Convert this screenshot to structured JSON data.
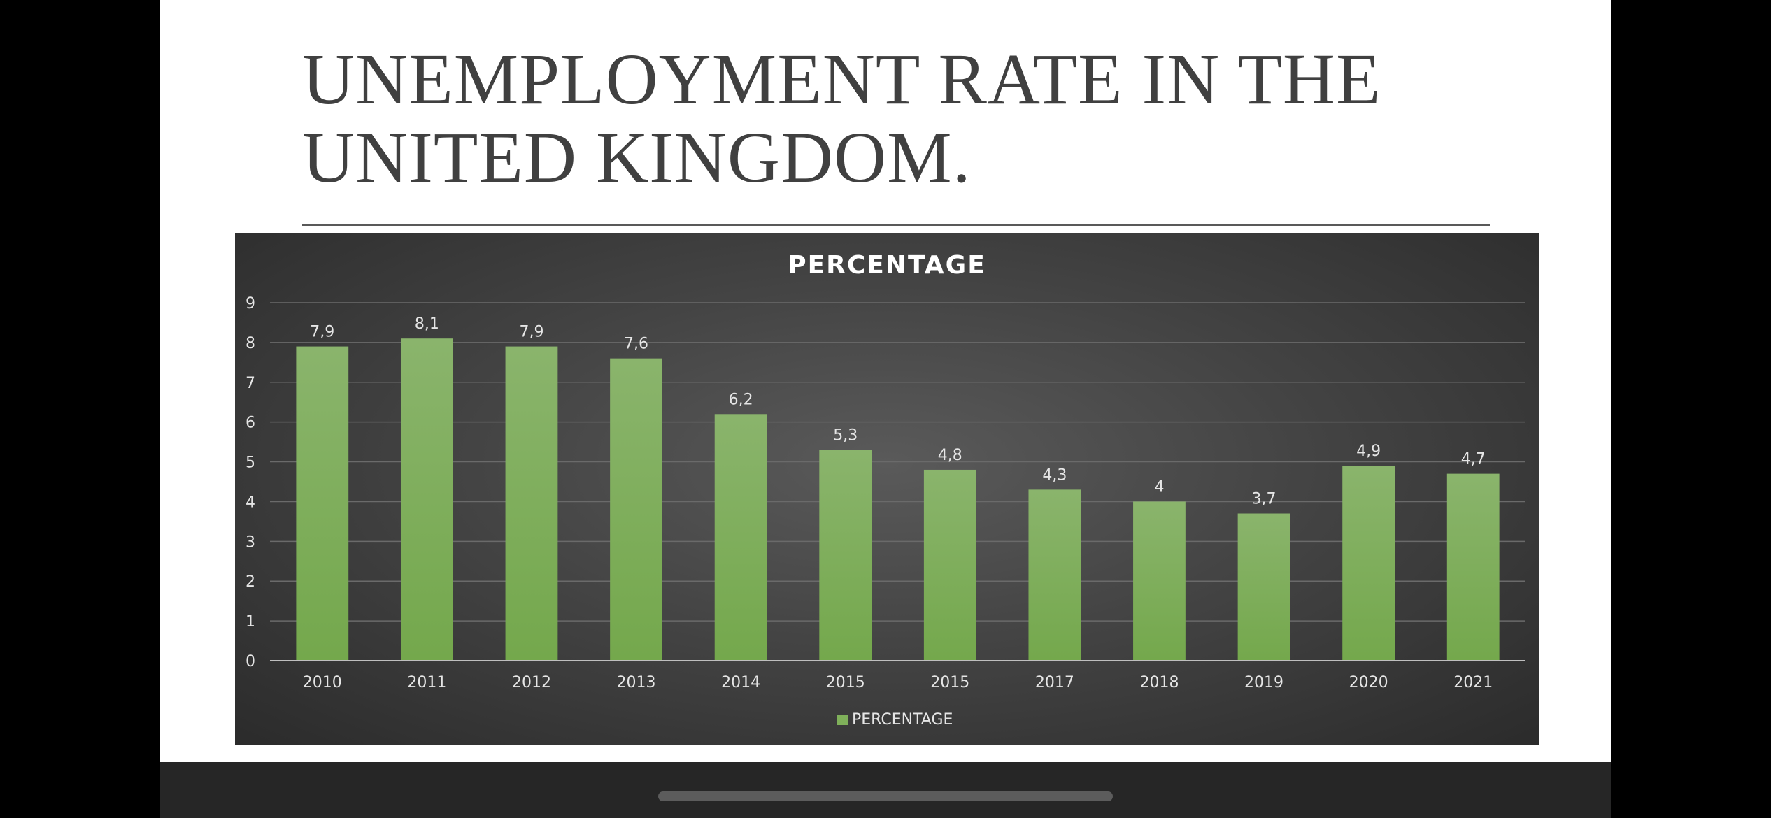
{
  "slide": {
    "title": "UNEMPLOYMENT RATE IN THE UNITED KINGDOM."
  },
  "colors": {
    "bar_top": "#8ab46c",
    "bar_bottom": "#74a84c",
    "legend_swatch": "#7fb05a",
    "slide_background": "#ffffff",
    "chart_background": "#444444"
  },
  "chart_data": {
    "type": "bar",
    "title": "PERCENTAGE",
    "categories": [
      "2010",
      "2011",
      "2012",
      "2013",
      "2014",
      "2015",
      "2015",
      "2017",
      "2018",
      "2019",
      "2020",
      "2021"
    ],
    "series": [
      {
        "name": "PERCENTAGE",
        "values": [
          7.9,
          8.1,
          7.9,
          7.6,
          6.2,
          5.3,
          4.8,
          4.3,
          4,
          3.7,
          4.9,
          4.7
        ],
        "labels": [
          "7,9",
          "8,1",
          "7,9",
          "7,6",
          "6,2",
          "5,3",
          "4,8",
          "4,3",
          "4",
          "3,7",
          "4,9",
          "4,7"
        ]
      }
    ],
    "ylim": [
      0,
      9
    ],
    "yticks": [
      "0",
      "1",
      "2",
      "3",
      "4",
      "5",
      "6",
      "7",
      "8",
      "9"
    ],
    "xlabel": "",
    "ylabel": "",
    "grid": true,
    "legend": "bottom"
  }
}
